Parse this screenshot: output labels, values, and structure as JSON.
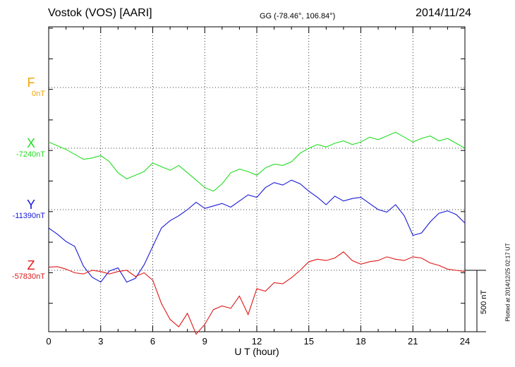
{
  "header": {
    "station": "Vostok (VOS)  [AARI]",
    "coords": "GG (-78.46°, 106.84°)",
    "date": "2014/11/24"
  },
  "chart_data": {
    "type": "line",
    "xlabel": "U T (hour)",
    "xlim": [
      0,
      24
    ],
    "xticks": [
      0,
      3,
      6,
      9,
      12,
      15,
      18,
      21,
      24
    ],
    "grid": true,
    "scale_bar": {
      "value_nT": 500,
      "label": "500 nT"
    },
    "plot_note": "Plotted at 2014/12/25 02:17 UT",
    "series": [
      {
        "name": "F",
        "baseline": "0nT",
        "color": "#f5a300",
        "points": []
      },
      {
        "name": "X",
        "baseline": "-7240nT",
        "color": "#22dd22",
        "points": [
          [
            0,
            10
          ],
          [
            0.5,
            4
          ],
          [
            1,
            -2
          ],
          [
            1.5,
            -10
          ],
          [
            2,
            -18
          ],
          [
            2.5,
            -16
          ],
          [
            3,
            -12
          ],
          [
            3.5,
            -22
          ],
          [
            4,
            -40
          ],
          [
            4.5,
            -50
          ],
          [
            5,
            -44
          ],
          [
            5.5,
            -38
          ],
          [
            6,
            -24
          ],
          [
            6.5,
            -30
          ],
          [
            7,
            -36
          ],
          [
            7.5,
            -28
          ],
          [
            8,
            -40
          ],
          [
            8.5,
            -52
          ],
          [
            9,
            -64
          ],
          [
            9.5,
            -70
          ],
          [
            10,
            -58
          ],
          [
            10.5,
            -40
          ],
          [
            11,
            -34
          ],
          [
            11.5,
            -38
          ],
          [
            12,
            -44
          ],
          [
            12.5,
            -32
          ],
          [
            13,
            -26
          ],
          [
            13.5,
            -28
          ],
          [
            14,
            -22
          ],
          [
            14.5,
            -8
          ],
          [
            15,
            0
          ],
          [
            15.5,
            6
          ],
          [
            16,
            2
          ],
          [
            16.5,
            8
          ],
          [
            17,
            12
          ],
          [
            17.5,
            6
          ],
          [
            18,
            10
          ],
          [
            18.5,
            18
          ],
          [
            19,
            14
          ],
          [
            19.5,
            20
          ],
          [
            20,
            26
          ],
          [
            20.5,
            18
          ],
          [
            21,
            10
          ],
          [
            21.5,
            16
          ],
          [
            22,
            20
          ],
          [
            22.5,
            12
          ],
          [
            23,
            16
          ],
          [
            23.5,
            8
          ],
          [
            24,
            0
          ]
        ]
      },
      {
        "name": "Y",
        "baseline": "-11390nT",
        "color": "#1818d8",
        "points": [
          [
            0,
            -30
          ],
          [
            0.5,
            -40
          ],
          [
            1,
            -52
          ],
          [
            1.5,
            -60
          ],
          [
            2,
            -92
          ],
          [
            2.5,
            -110
          ],
          [
            3,
            -118
          ],
          [
            3.5,
            -100
          ],
          [
            4,
            -95
          ],
          [
            4.5,
            -118
          ],
          [
            5,
            -112
          ],
          [
            5.5,
            -90
          ],
          [
            6,
            -60
          ],
          [
            6.5,
            -30
          ],
          [
            7,
            -18
          ],
          [
            7.5,
            -10
          ],
          [
            8,
            0
          ],
          [
            8.5,
            12
          ],
          [
            9,
            2
          ],
          [
            9.5,
            6
          ],
          [
            10,
            10
          ],
          [
            10.5,
            4
          ],
          [
            11,
            14
          ],
          [
            11.5,
            24
          ],
          [
            12,
            20
          ],
          [
            12.5,
            36
          ],
          [
            13,
            44
          ],
          [
            13.5,
            40
          ],
          [
            14,
            48
          ],
          [
            14.5,
            42
          ],
          [
            15,
            30
          ],
          [
            15.5,
            20
          ],
          [
            16,
            8
          ],
          [
            16.5,
            22
          ],
          [
            17,
            14
          ],
          [
            17.5,
            18
          ],
          [
            18,
            20
          ],
          [
            18.5,
            10
          ],
          [
            19,
            0
          ],
          [
            19.5,
            -4
          ],
          [
            20,
            8
          ],
          [
            20.5,
            -10
          ],
          [
            21,
            -42
          ],
          [
            21.5,
            -38
          ],
          [
            22,
            -20
          ],
          [
            22.5,
            -6
          ],
          [
            23,
            -2
          ],
          [
            23.5,
            -8
          ],
          [
            24,
            -22
          ]
        ]
      },
      {
        "name": "Z",
        "baseline": "-57830nT",
        "color": "#e01818",
        "points": [
          [
            0,
            5
          ],
          [
            0.5,
            6
          ],
          [
            1,
            2
          ],
          [
            1.5,
            -4
          ],
          [
            2,
            -6
          ],
          [
            2.5,
            0
          ],
          [
            3,
            -2
          ],
          [
            3.5,
            -6
          ],
          [
            4,
            -2
          ],
          [
            4.5,
            0
          ],
          [
            5,
            -10
          ],
          [
            5.5,
            -4
          ],
          [
            6,
            -16
          ],
          [
            6.5,
            -54
          ],
          [
            7,
            -80
          ],
          [
            7.5,
            -92
          ],
          [
            8,
            -70
          ],
          [
            8.5,
            -104
          ],
          [
            9,
            -88
          ],
          [
            9.5,
            -64
          ],
          [
            10,
            -58
          ],
          [
            10.5,
            -62
          ],
          [
            11,
            -42
          ],
          [
            11.5,
            -72
          ],
          [
            12,
            -30
          ],
          [
            12.5,
            -34
          ],
          [
            13,
            -20
          ],
          [
            13.5,
            -22
          ],
          [
            14,
            -12
          ],
          [
            14.5,
            0
          ],
          [
            15,
            14
          ],
          [
            15.5,
            18
          ],
          [
            16,
            16
          ],
          [
            16.5,
            20
          ],
          [
            17,
            30
          ],
          [
            17.5,
            16
          ],
          [
            18,
            10
          ],
          [
            18.5,
            14
          ],
          [
            19,
            16
          ],
          [
            19.5,
            22
          ],
          [
            20,
            18
          ],
          [
            20.5,
            16
          ],
          [
            21,
            22
          ],
          [
            21.5,
            20
          ],
          [
            22,
            12
          ],
          [
            22.5,
            8
          ],
          [
            23,
            2
          ],
          [
            23.5,
            0
          ],
          [
            24,
            -2
          ]
        ]
      }
    ]
  }
}
